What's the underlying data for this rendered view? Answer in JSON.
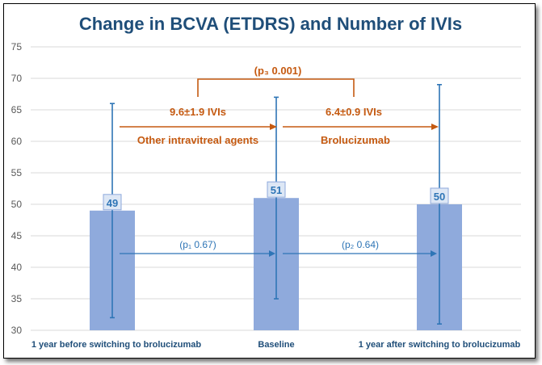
{
  "chart_data": {
    "type": "bar",
    "title": "Change in BCVA (ETDRS) and Number of IVIs",
    "categories": [
      "1 year before switching to  brolucizumab",
      "Baseline",
      "1 year after switching to brolucizumab"
    ],
    "values": [
      49,
      51,
      50
    ],
    "error_high": [
      66,
      67,
      69
    ],
    "error_low": [
      32,
      35,
      31
    ],
    "ylim": [
      30,
      75
    ],
    "yticks": [
      "30",
      "35",
      "40",
      "45",
      "50",
      "55",
      "60",
      "65",
      "70",
      "75"
    ],
    "grid": true,
    "data_labels": [
      "49",
      "51",
      "50"
    ],
    "annotations": {
      "p3": "(p₃ 0.001)",
      "ivis_before": "9.6±1.9 IVIs",
      "ivis_after": "6.4±0.9 IVIs",
      "agents_before": "Other intravitreal agents",
      "agents_after": "Brolucizumab",
      "p1": "(p₁ 0.67)",
      "p2": "(p₂ 0.64)"
    },
    "colors": {
      "bar": "#8faadc",
      "error": "#2e75b6",
      "orange": "#c55a11",
      "title": "#1f4e79"
    }
  }
}
